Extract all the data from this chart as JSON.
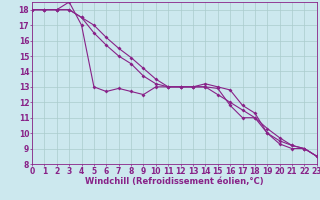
{
  "xlabel": "Windchill (Refroidissement éolien,°C)",
  "bg_color": "#cce8ee",
  "grid_color": "#aacccc",
  "line_color": "#882288",
  "xmin": 0,
  "xmax": 23,
  "ymin": 8,
  "ymax": 18.5,
  "yticks": [
    8,
    9,
    10,
    11,
    12,
    13,
    14,
    15,
    16,
    17,
    18
  ],
  "xticks": [
    0,
    1,
    2,
    3,
    4,
    5,
    6,
    7,
    8,
    9,
    10,
    11,
    12,
    13,
    14,
    15,
    16,
    17,
    18,
    19,
    20,
    21,
    22,
    23
  ],
  "series1_x": [
    0,
    1,
    2,
    3,
    4,
    5,
    6,
    7,
    8,
    9,
    10,
    11,
    12,
    13,
    14,
    15,
    16,
    17,
    18,
    19,
    20,
    21,
    22,
    23
  ],
  "series1_y": [
    18.0,
    18.0,
    18.0,
    18.5,
    17.0,
    13.0,
    12.7,
    12.9,
    12.7,
    12.5,
    13.0,
    13.0,
    13.0,
    13.0,
    13.0,
    12.9,
    11.8,
    11.0,
    11.0,
    10.0,
    9.3,
    9.0,
    9.0,
    8.5
  ],
  "series2_x": [
    0,
    1,
    2,
    3,
    4,
    5,
    6,
    7,
    8,
    9,
    10,
    11,
    12,
    13,
    14,
    15,
    16,
    17,
    18,
    19,
    20,
    21,
    22,
    23
  ],
  "series2_y": [
    18.0,
    18.0,
    18.0,
    18.0,
    17.5,
    17.0,
    16.2,
    15.5,
    14.9,
    14.2,
    13.5,
    13.0,
    13.0,
    13.0,
    13.0,
    12.5,
    12.0,
    11.5,
    11.0,
    10.3,
    9.7,
    9.2,
    9.0,
    8.5
  ],
  "series3_x": [
    0,
    1,
    2,
    3,
    4,
    5,
    6,
    7,
    8,
    9,
    10,
    11,
    12,
    13,
    14,
    15,
    16,
    17,
    18,
    19,
    20,
    21,
    22,
    23
  ],
  "series3_y": [
    18.0,
    18.0,
    18.0,
    18.0,
    17.5,
    16.5,
    15.7,
    15.0,
    14.5,
    13.7,
    13.2,
    13.0,
    13.0,
    13.0,
    13.2,
    13.0,
    12.8,
    11.8,
    11.3,
    10.0,
    9.5,
    9.2,
    9.0,
    8.5
  ],
  "marker": "D",
  "markersize": 2.0,
  "linewidth": 0.8,
  "xlabel_fontsize": 6,
  "tick_fontsize": 5.5
}
